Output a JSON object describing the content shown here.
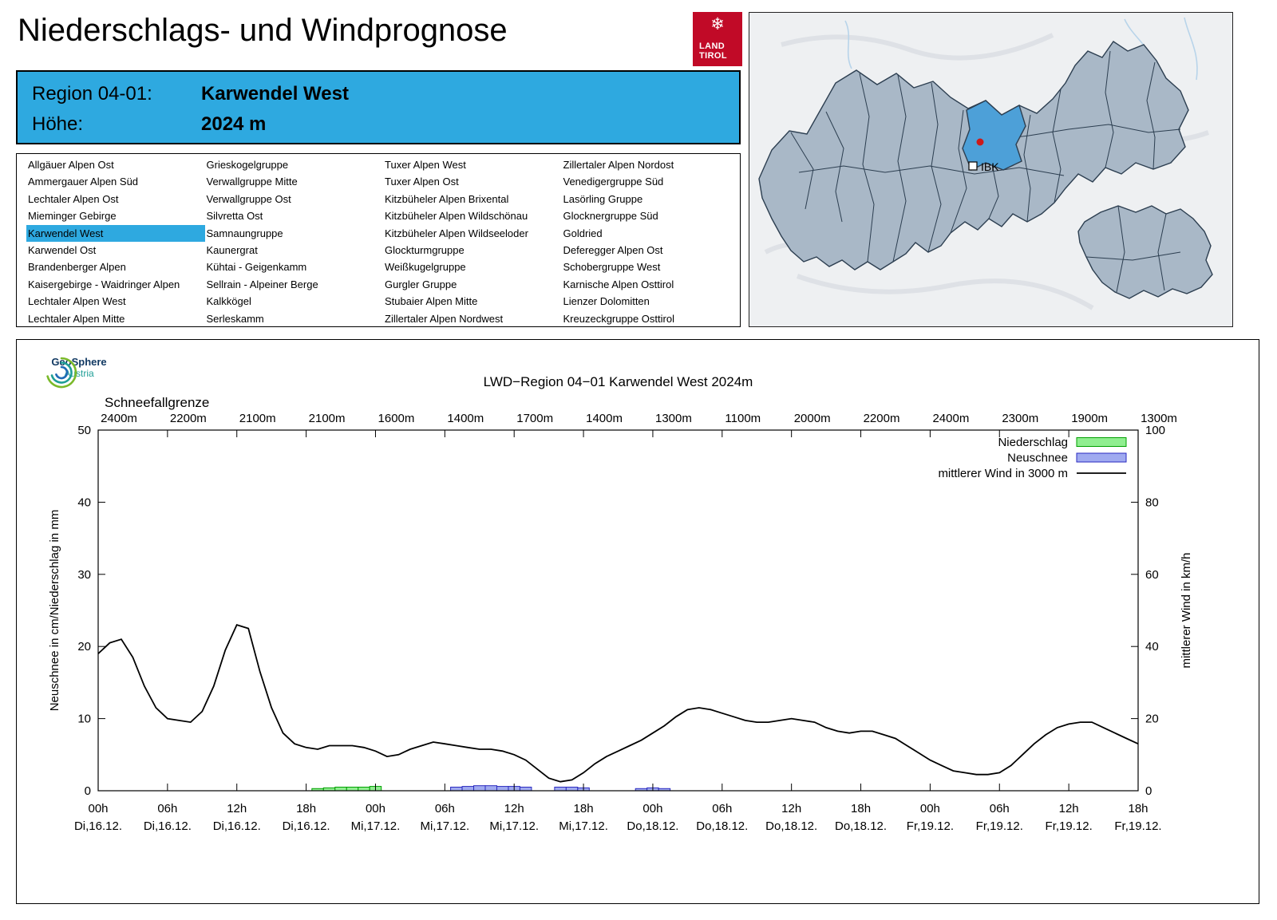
{
  "page": {
    "title": "Niederschlags- und Windprognose"
  },
  "logo_tirol": {
    "snowflake": "❄",
    "line1": "LAND",
    "line2": "TIROL"
  },
  "colors": {
    "accent_blue": "#2ea9e0",
    "logo_red": "#c10a27",
    "map_fill": "#a9b8c7",
    "map_stroke": "#2c3e50",
    "map_highlight": "#4da0d8",
    "marker_red": "#cc1a1a"
  },
  "region_header": {
    "region_label": "Region 04-01:",
    "region_value": "Karwendel West",
    "hoehe_label": "Höhe:",
    "hoehe_value": "2024 m"
  },
  "region_list": {
    "selected": "Karwendel West",
    "columns": [
      [
        "Allgäuer Alpen Ost",
        "Ammergauer Alpen Süd",
        "Lechtaler Alpen Ost",
        "Mieminger Gebirge",
        "Karwendel West",
        "Karwendel Ost",
        "Brandenberger Alpen",
        "Kaisergebirge - Waidringer Alpen",
        "Lechtaler Alpen West",
        "Lechtaler Alpen Mitte"
      ],
      [
        "Grieskogelgruppe",
        "Verwallgruppe Mitte",
        "Verwallgruppe Ost",
        "Silvretta Ost",
        "Samnaungruppe",
        "Kaunergrat",
        "Kühtai - Geigenkamm",
        "Sellrain - Alpeiner Berge",
        "Kalkkögel",
        "Serleskamm"
      ],
      [
        "Tuxer Alpen West",
        "Tuxer Alpen Ost",
        "Kitzbüheler Alpen Brixental",
        "Kitzbüheler Alpen Wildschönau",
        "Kitzbüheler Alpen Wildseeloder",
        "Glockturmgruppe",
        "Weißkugelgruppe",
        "Gurgler Gruppe",
        "Stubaier Alpen Mitte",
        "Zillertaler Alpen Nordwest"
      ],
      [
        "Zillertaler Alpen Nordost",
        "Venedigergruppe Süd",
        "Lasörling Gruppe",
        "Glocknergruppe Süd",
        "Goldried",
        "Deferegger Alpen Ost",
        "Schobergruppe West",
        "Karnische Alpen Osttirol",
        "Lienzer Dolomitten",
        "Kreuzeckgruppe Osttirol"
      ]
    ]
  },
  "map": {
    "city_label": "IBK"
  },
  "geosphere_logo": {
    "name": "GeoSphere",
    "country": "Austria"
  },
  "chart_data": {
    "type": "line+bar",
    "title": "LWD−Region 04−01 Karwendel West 2024m",
    "snowline_label": "Schneefallgrenze",
    "snowline_values": [
      "2400m",
      "2200m",
      "2100m",
      "2100m",
      "1600m",
      "1400m",
      "1700m",
      "1400m",
      "1300m",
      "1100m",
      "2000m",
      "2200m",
      "2400m",
      "2300m",
      "1900m",
      "1300m"
    ],
    "ylabel_left": "Neuschnee in cm/Niederschlag in mm",
    "ylabel_right": "mittlerer Wind in km/h",
    "ylim_left": [
      0,
      50
    ],
    "ylim_right": [
      0,
      100
    ],
    "yticks_left": [
      0,
      10,
      20,
      30,
      40,
      50
    ],
    "yticks_right": [
      0,
      20,
      40,
      60,
      80,
      100
    ],
    "x_hours_total": 90,
    "xtick_interval_hours": 6,
    "xtick_labels_time": [
      "00h",
      "06h",
      "12h",
      "18h",
      "00h",
      "06h",
      "12h",
      "18h",
      "00h",
      "06h",
      "12h",
      "18h",
      "00h",
      "06h",
      "12h",
      "18h"
    ],
    "xtick_labels_date": [
      "Di,16.12.",
      "Di,16.12.",
      "Di,16.12.",
      "Di,16.12.",
      "Mi,17.12.",
      "Mi,17.12.",
      "Mi,17.12.",
      "Mi,17.12.",
      "Do,18.12.",
      "Do,18.12.",
      "Do,18.12.",
      "Do,18.12.",
      "Fr,19.12.",
      "Fr,19.12.",
      "Fr,19.12.",
      "Fr,19.12."
    ],
    "legend": [
      {
        "label": "Niederschlag",
        "type": "box",
        "fill": "#90ee90",
        "stroke": "#00a000"
      },
      {
        "label": "Neuschnee",
        "type": "box",
        "fill": "#a0aaf0",
        "stroke": "#2a2ac0"
      },
      {
        "label": "mittlerer Wind in 3000 m",
        "type": "line",
        "stroke": "#000000"
      }
    ],
    "series": [
      {
        "name": "mittlerer Wind in 3000 m",
        "axis": "right",
        "unit": "km/h",
        "x_start": 0,
        "x_step": 1,
        "values": [
          38,
          41,
          42,
          37,
          29,
          23,
          20,
          19.5,
          19,
          22,
          29,
          39,
          46,
          45,
          33,
          23,
          16,
          13,
          12,
          11.5,
          12.5,
          12.5,
          12.5,
          12,
          11,
          9.5,
          10,
          11.5,
          12.5,
          13.5,
          13,
          12.5,
          12,
          11.5,
          11.5,
          11,
          10,
          8.5,
          6,
          3.5,
          2.5,
          3,
          5,
          7.5,
          9.5,
          11,
          12.5,
          14,
          16,
          18,
          20.5,
          22.5,
          23,
          22.5,
          21.5,
          20.5,
          19.5,
          19,
          19,
          19.5,
          20,
          19.5,
          19,
          17.5,
          16.5,
          16,
          16.5,
          16.5,
          15.5,
          14.5,
          12.5,
          10.5,
          8.5,
          7,
          5.5,
          5,
          4.5,
          4.5,
          5,
          7,
          10,
          13,
          15.5,
          17.5,
          18.5,
          19,
          19,
          17.5,
          16,
          14.5,
          13
        ]
      },
      {
        "name": "Niederschlag",
        "axis": "left",
        "unit": "mm",
        "bars": [
          [
            19,
            0.3
          ],
          [
            20,
            0.4
          ],
          [
            21,
            0.5
          ],
          [
            22,
            0.5
          ],
          [
            23,
            0.5
          ],
          [
            24,
            0.6
          ]
        ]
      },
      {
        "name": "Neuschnee",
        "axis": "left",
        "unit": "cm",
        "bars": [
          [
            31,
            0.5
          ],
          [
            32,
            0.6
          ],
          [
            33,
            0.7
          ],
          [
            34,
            0.7
          ],
          [
            35,
            0.6
          ],
          [
            36,
            0.6
          ],
          [
            37,
            0.5
          ],
          [
            40,
            0.5
          ],
          [
            41,
            0.5
          ],
          [
            42,
            0.4
          ],
          [
            47,
            0.3
          ],
          [
            48,
            0.4
          ],
          [
            49,
            0.3
          ]
        ]
      }
    ]
  }
}
